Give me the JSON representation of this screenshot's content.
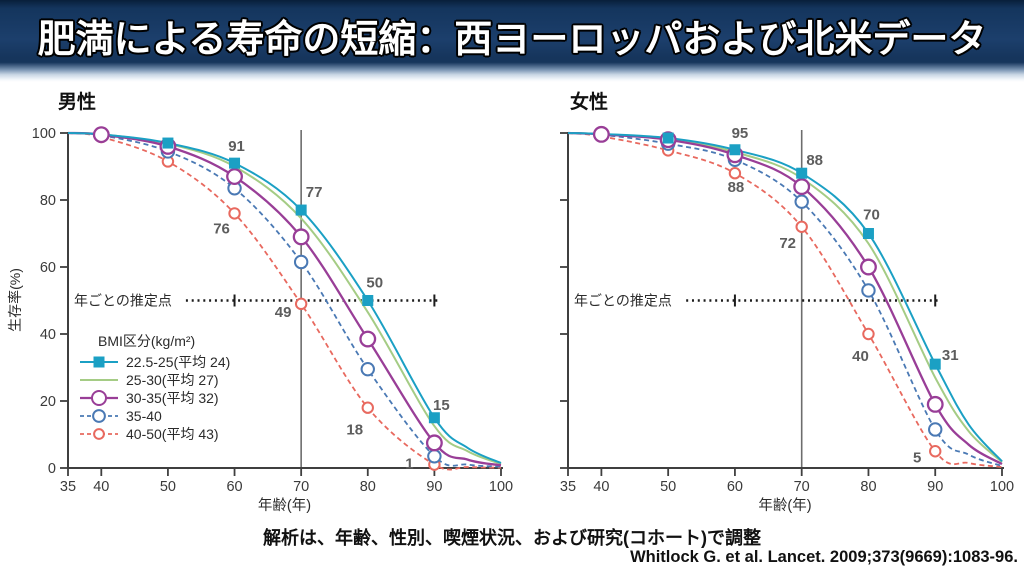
{
  "title_bar": {
    "title": "肥満による寿命の短縮：西ヨーロッパおよび北米データ"
  },
  "footer": {
    "adjustment_note": "解析は、年齢、性別、喫煙状況、および研究(コホート)で調整",
    "citation": "Whitlock G. et al. Lancet. 2009;373(9669):1083-96."
  },
  "chart_data": {
    "type": "line",
    "x": [
      35,
      40,
      50,
      60,
      70,
      80,
      90,
      95,
      100
    ],
    "xlabel": "年齢(年)",
    "ylabel": "生存率(%)",
    "xlim": [
      35,
      100
    ],
    "ylim": [
      0,
      100
    ],
    "xticks": [
      35,
      40,
      50,
      60,
      70,
      80,
      90,
      100
    ],
    "yticks": [
      0,
      20,
      40,
      60,
      80,
      100
    ],
    "reference_age_line": 70,
    "estimate_line": {
      "label": "年ごとの推定点",
      "y": 50,
      "tick_ages": [
        60,
        90
      ]
    },
    "legend": {
      "title": "BMI区分(kg/m²)",
      "position": "lower-left of male panel"
    },
    "panels": [
      {
        "title": "男性",
        "series": [
          {
            "label": "22.5-25(平均 24)",
            "color": "#1BA0C4",
            "line": "solid",
            "marker": "filled-square",
            "marker_ages": [
              50,
              60,
              70,
              80,
              90
            ],
            "values": [
              100,
              99.6,
              97,
              91,
              77,
              50,
              15,
              6,
              1.5
            ],
            "point_labels": [
              {
                "age": 60,
                "text": "91",
                "dx": 2,
                "dy": -12
              },
              {
                "age": 70,
                "text": "77",
                "dx": 13,
                "dy": -13
              },
              {
                "age": 80,
                "text": "50",
                "dx": 7,
                "dy": -13
              },
              {
                "age": 90,
                "text": "15",
                "dx": 7,
                "dy": -8
              }
            ]
          },
          {
            "label": "25-30(平均 27)",
            "color": "#A5CC85",
            "line": "solid",
            "marker": "none",
            "marker_ages": [],
            "values": [
              100,
              99.6,
              96.8,
              90,
              74.5,
              46.5,
              12.5,
              5,
              1.2
            ],
            "point_labels": []
          },
          {
            "label": "30-35(平均 32)",
            "color": "#993E97",
            "line": "solid",
            "marker": "open-circle-large",
            "marker_ages": [
              40,
              50,
              60,
              70,
              80,
              90
            ],
            "values": [
              100,
              99.5,
              96,
              87,
              69,
              38.5,
              7.5,
              2.5,
              0.8
            ],
            "point_labels": []
          },
          {
            "label": "35-40",
            "color": "#4A79B4",
            "line": "dashed",
            "marker": "open-circle",
            "marker_ages": [
              40,
              50,
              60,
              70,
              80,
              90
            ],
            "values": [
              100,
              99.3,
              94.5,
              83.5,
              61.5,
              29.5,
              3.5,
              1,
              0.4
            ],
            "point_labels": []
          },
          {
            "label": "40-50(平均 43)",
            "color": "#E8695F",
            "line": "dashed",
            "marker": "open-circle-small",
            "marker_ages": [
              40,
              50,
              60,
              70,
              80,
              90
            ],
            "values": [
              100,
              98.8,
              91.5,
              76,
              49,
              18,
              1,
              0.3,
              0.1
            ],
            "point_labels": [
              {
                "age": 60,
                "text": "76",
                "dx": -13,
                "dy": 20
              },
              {
                "age": 70,
                "text": "49",
                "dx": -18,
                "dy": 13
              },
              {
                "age": 80,
                "text": "18",
                "dx": -13,
                "dy": 27
              },
              {
                "age": 90,
                "text": "1",
                "dx": -25,
                "dy": 4
              }
            ]
          }
        ]
      },
      {
        "title": "女性",
        "series": [
          {
            "label": "22.5-25(平均 24)",
            "color": "#1BA0C4",
            "line": "solid",
            "marker": "filled-square",
            "marker_ages": [
              50,
              60,
              70,
              80,
              90
            ],
            "values": [
              100,
              99.7,
              98.5,
              95,
              88,
              70,
              31,
              13,
              2
            ],
            "point_labels": [
              {
                "age": 60,
                "text": "95",
                "dx": 5,
                "dy": -12
              },
              {
                "age": 70,
                "text": "88",
                "dx": 13,
                "dy": -8
              },
              {
                "age": 80,
                "text": "70",
                "dx": 3,
                "dy": -14
              },
              {
                "age": 90,
                "text": "31",
                "dx": 15,
                "dy": -4
              }
            ]
          },
          {
            "label": "25-30(平均 27)",
            "color": "#A5CC85",
            "line": "solid",
            "marker": "none",
            "marker_ages": [],
            "values": [
              100,
              99.7,
              98.3,
              94.3,
              86.5,
              67,
              27,
              11,
              1.8
            ],
            "point_labels": []
          },
          {
            "label": "30-35(平均 32)",
            "color": "#993E97",
            "line": "solid",
            "marker": "open-circle-large",
            "marker_ages": [
              40,
              50,
              60,
              70,
              80,
              90
            ],
            "values": [
              100,
              99.6,
              98,
              93.5,
              84,
              60,
              19,
              7,
              1.2
            ],
            "point_labels": []
          },
          {
            "label": "35-40",
            "color": "#4A79B4",
            "line": "dashed",
            "marker": "open-circle",
            "marker_ages": [
              40,
              50,
              60,
              70,
              80,
              90
            ],
            "values": [
              100,
              99.5,
              96.8,
              92,
              79.5,
              53,
              11.5,
              4,
              0.6
            ],
            "point_labels": []
          },
          {
            "label": "40-50(平均 43)",
            "color": "#E8695F",
            "line": "dashed",
            "marker": "open-circle-small",
            "marker_ages": [
              40,
              50,
              60,
              70,
              80,
              90
            ],
            "values": [
              100,
              99,
              94.8,
              88,
              72,
              40,
              5,
              1.5,
              0.3
            ],
            "point_labels": [
              {
                "age": 60,
                "text": "88",
                "dx": 1,
                "dy": 19
              },
              {
                "age": 70,
                "text": "72",
                "dx": -14,
                "dy": 21
              },
              {
                "age": 80,
                "text": "40",
                "dx": -8,
                "dy": 27
              },
              {
                "age": 90,
                "text": "5",
                "dx": -18,
                "dy": 11
              }
            ]
          }
        ]
      }
    ]
  }
}
